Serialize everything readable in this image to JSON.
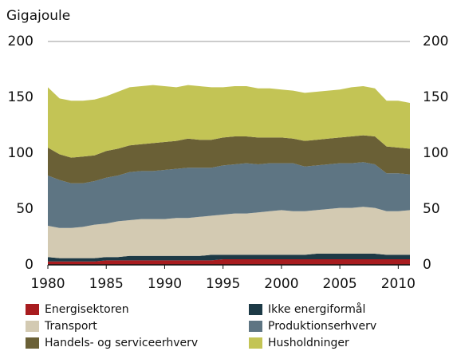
{
  "chart_data": {
    "type": "stacked-area",
    "y_label": "Gigajoule",
    "x": [
      1980,
      1981,
      1982,
      1983,
      1984,
      1985,
      1986,
      1987,
      1988,
      1989,
      1990,
      1991,
      1992,
      1993,
      1994,
      1995,
      1996,
      1997,
      1998,
      1999,
      2000,
      2001,
      2002,
      2003,
      2004,
      2005,
      2006,
      2007,
      2008,
      2009,
      2010,
      2011
    ],
    "xlim": [
      1980,
      2011
    ],
    "xticks": [
      1980,
      1985,
      1990,
      1995,
      2000,
      2005,
      2010
    ],
    "ylim": [
      0,
      200
    ],
    "yticks": [
      0,
      50,
      100,
      150,
      200
    ],
    "grid": true,
    "right_axis": true,
    "series": [
      {
        "name": "Energisektoren",
        "color": "#a81c1f",
        "values": [
          3,
          3,
          3,
          3,
          3,
          4,
          4,
          4,
          4,
          4,
          4,
          4,
          4,
          4,
          4,
          5,
          5,
          5,
          5,
          5,
          5,
          5,
          5,
          5,
          5,
          5,
          5,
          5,
          5,
          5,
          5,
          5
        ]
      },
      {
        "name": "Ikke energiformål",
        "color": "#1d3a46",
        "values": [
          4,
          3,
          3,
          3,
          3,
          3,
          3,
          4,
          4,
          4,
          4,
          4,
          4,
          4,
          5,
          4,
          4,
          4,
          4,
          4,
          4,
          4,
          4,
          5,
          5,
          5,
          5,
          5,
          5,
          4,
          4,
          4
        ]
      },
      {
        "name": "Transport",
        "color": "#d3cab2",
        "values": [
          28,
          27,
          27,
          28,
          30,
          30,
          32,
          32,
          33,
          33,
          33,
          34,
          34,
          35,
          35,
          36,
          37,
          37,
          38,
          39,
          40,
          39,
          39,
          39,
          40,
          41,
          41,
          42,
          41,
          39,
          39,
          40
        ]
      },
      {
        "name": "Produktionserhverv",
        "color": "#5e7583",
        "values": [
          45,
          43,
          40,
          39,
          39,
          41,
          41,
          43,
          43,
          43,
          44,
          44,
          45,
          44,
          43,
          44,
          44,
          45,
          43,
          43,
          42,
          43,
          40,
          40,
          40,
          40,
          40,
          40,
          39,
          34,
          34,
          32
        ]
      },
      {
        "name": "Handels- og serviceerhverv",
        "color": "#6a6036",
        "values": [
          25,
          23,
          23,
          24,
          23,
          24,
          24,
          24,
          24,
          25,
          25,
          25,
          26,
          25,
          25,
          25,
          25,
          24,
          24,
          23,
          23,
          22,
          23,
          23,
          23,
          23,
          24,
          24,
          25,
          24,
          23,
          23
        ]
      },
      {
        "name": "Husholdninger",
        "color": "#c3c455",
        "values": [
          54,
          50,
          51,
          50,
          50,
          49,
          51,
          52,
          52,
          52,
          50,
          48,
          48,
          48,
          47,
          45,
          45,
          45,
          44,
          44,
          43,
          43,
          43,
          43,
          43,
          43,
          44,
          44,
          43,
          41,
          42,
          41
        ]
      }
    ]
  }
}
